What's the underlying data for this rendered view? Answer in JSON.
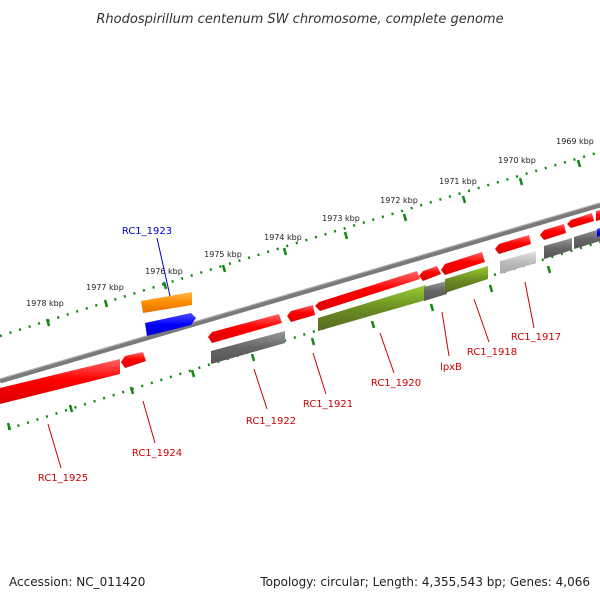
{
  "title": "Rhodospirillum centenum SW chromosome, complete genome",
  "footer": {
    "accession": "Accession: NC_011420",
    "summary": "Topology: circular; Length: 4,355,543 bp; Genes: 4,066"
  },
  "ruler_labels": [
    "1978 kbp",
    "1977 kbp",
    "1976 kbp",
    "1975 kbp",
    "1974 kbp",
    "1973 kbp",
    "1972 kbp",
    "1971 kbp",
    "1970 kbp",
    "1969 kbp"
  ],
  "gene_labels": {
    "rc1_1923": "RC1_1923",
    "rc1_1925": "RC1_1925",
    "rc1_1924": "RC1_1924",
    "rc1_1922": "RC1_1922",
    "rc1_1921": "RC1_1921",
    "rc1_1920": "RC1_1920",
    "lpxb": "lpxB",
    "rc1_1918": "RC1_1918",
    "rc1_1917": "RC1_1917"
  },
  "colors": {
    "cds": "#ff0000",
    "label_red": "#cc0000",
    "label_blue": "#0000cc",
    "tick": "#118811",
    "backbone": "#808080",
    "olive": "#6b8e23",
    "orange": "#ff8c00",
    "blue": "#0000ff",
    "grey": "#666666",
    "lightgrey": "#bbbbbb"
  }
}
